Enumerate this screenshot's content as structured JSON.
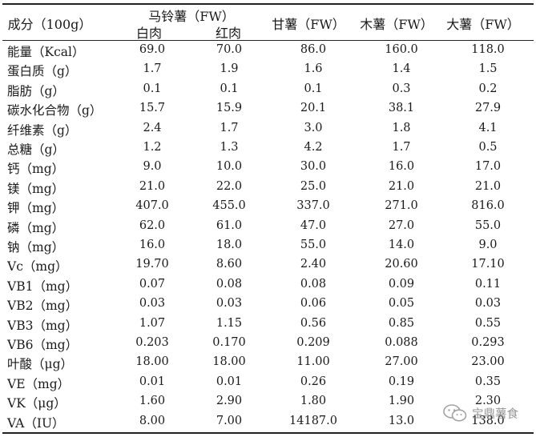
{
  "header": {
    "component": "成分（100g）",
    "potato": "马铃薯（FW）",
    "white": "白肉",
    "red": "红肉",
    "sweet": "甘薯（FW）",
    "cassava": "木薯（FW）",
    "yam": "大薯（FW）"
  },
  "rows": [
    {
      "label": "能量（Kcal）",
      "values": [
        "69.0",
        "70.0",
        "86.0",
        "160.0",
        "118.0"
      ]
    },
    {
      "label": "蛋白质（g）",
      "values": [
        "1.7",
        "1.9",
        "1.6",
        "1.4",
        "1.5"
      ]
    },
    {
      "label": "脂肪（g）",
      "values": [
        "0.1",
        "0.1",
        "0.1",
        "0.3",
        "0.2"
      ]
    },
    {
      "label": "碳水化合物（g）",
      "values": [
        "15.7",
        "15.9",
        "20.1",
        "38.1",
        "27.9"
      ]
    },
    {
      "label": "纤维素（g）",
      "values": [
        "2.4",
        "1.7",
        "3.0",
        "1.8",
        "4.1"
      ]
    },
    {
      "label": "总糖（g）",
      "values": [
        "1.2",
        "1.3",
        "4.2",
        "1.7",
        "0.5"
      ]
    },
    {
      "label": "钙（mg）",
      "values": [
        "9.0",
        "10.0",
        "30.0",
        "16.0",
        "17.0"
      ]
    },
    {
      "label": "镁（mg）",
      "values": [
        "21.0",
        "22.0",
        "25.0",
        "21.0",
        "21.0"
      ]
    },
    {
      "label": "钾（mg）",
      "values": [
        "407.0",
        "455.0",
        "337.0",
        "271.0",
        "816.0"
      ]
    },
    {
      "label": "磷（mg）",
      "values": [
        "62.0",
        "61.0",
        "47.0",
        "27.0",
        "55.0"
      ]
    },
    {
      "label": "钠（mg）",
      "values": [
        "16.0",
        "18.0",
        "55.0",
        "14.0",
        "9.0"
      ]
    },
    {
      "label": "Vc（mg）",
      "values": [
        "19.70",
        "8.60",
        "2.40",
        "20.60",
        "17.10"
      ]
    },
    {
      "label": "VB1（mg）",
      "values": [
        "0.07",
        "0.08",
        "0.08",
        "0.09",
        "0.11"
      ]
    },
    {
      "label": "VB2（mg）",
      "values": [
        "0.03",
        "0.03",
        "0.06",
        "0.05",
        "0.03"
      ]
    },
    {
      "label": "VB3（mg）",
      "values": [
        "1.07",
        "1.15",
        "0.56",
        "0.85",
        "0.55"
      ]
    },
    {
      "label": "VB6（mg）",
      "values": [
        "0.203",
        "0.170",
        "0.209",
        "0.088",
        "0.293"
      ]
    },
    {
      "label": "叶酸（μg）",
      "values": [
        "18.00",
        "18.00",
        "11.00",
        "27.00",
        "23.00"
      ]
    },
    {
      "label": "VE（mg）",
      "values": [
        "0.01",
        "0.01",
        "0.26",
        "0.19",
        "0.35"
      ]
    },
    {
      "label": "VK（μg）",
      "values": [
        "1.60",
        "2.90",
        "1.80",
        "1.90",
        "2.30"
      ]
    },
    {
      "label": "VA（IU）",
      "values": [
        "8.00",
        "7.00",
        "14187.0",
        "13.0",
        "138.0"
      ]
    }
  ],
  "watermark": {
    "text": "宝鼎薯食",
    "icon": "wechat-icon"
  }
}
